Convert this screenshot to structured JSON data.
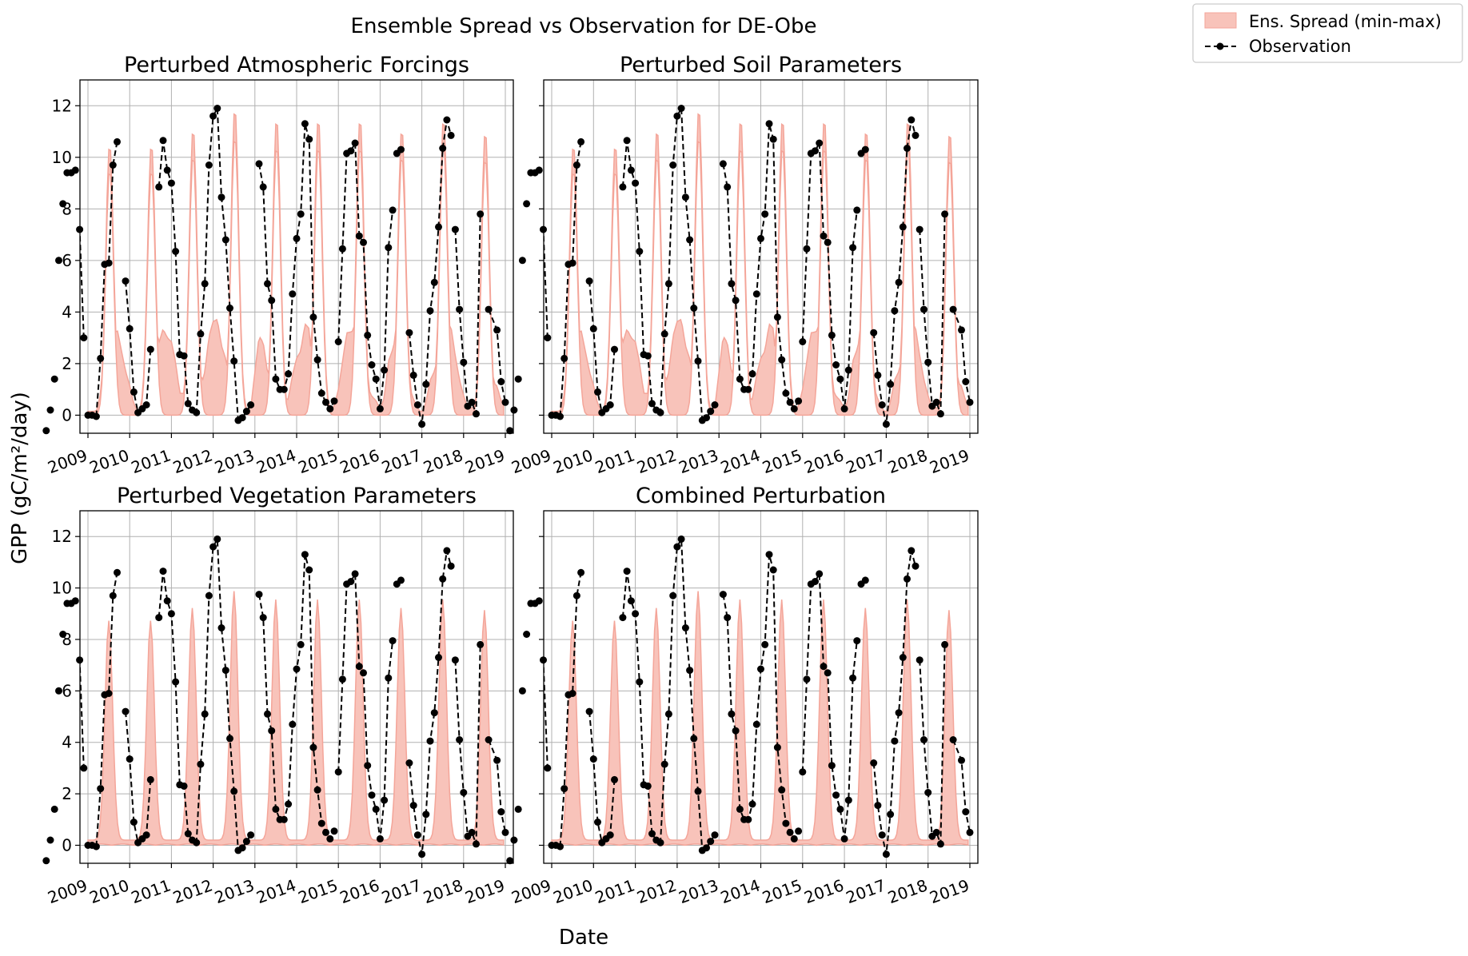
{
  "figure": {
    "title": "Ensemble Spread vs Observation for DE-Obe",
    "xlabel": "Date",
    "ylabel": "GPP (gC/m²/day)",
    "legend": {
      "placement": "upper-right, outside plots",
      "items": [
        {
          "label": "Ens. Spread (min-max)",
          "kind": "fill",
          "color": "#f4a599"
        },
        {
          "label": "Observation",
          "kind": "line-marker",
          "color": "#000000",
          "style": "dashed"
        }
      ]
    },
    "colors": {
      "spread_fill": "#f8c3ba",
      "spread_edge": "#f4a599",
      "observation": "#000000",
      "grid": "#b0b0b0"
    }
  },
  "chart_data": [
    {
      "type": "area",
      "title": "Perturbed Atmospheric Forcings",
      "xlim": [
        2009,
        2019
      ],
      "ylim": [
        -0.7,
        13.0
      ],
      "yticks": [
        0,
        2,
        4,
        6,
        8,
        10,
        12
      ],
      "xticks": [
        "2009",
        "2010",
        "2011",
        "2012",
        "2013",
        "2014",
        "2015",
        "2016",
        "2017",
        "2018",
        "2019"
      ],
      "grid": true,
      "spread_style": "narrow"
    },
    {
      "type": "area",
      "title": "Perturbed Soil Parameters",
      "xlim": [
        2009,
        2019
      ],
      "ylim": [
        -0.7,
        13.0
      ],
      "yticks": [
        0,
        2,
        4,
        6,
        8,
        10,
        12
      ],
      "xticks": [
        "2009",
        "2010",
        "2011",
        "2012",
        "2013",
        "2014",
        "2015",
        "2016",
        "2017",
        "2018",
        "2019"
      ],
      "grid": true,
      "spread_style": "narrow"
    },
    {
      "type": "area",
      "title": "Perturbed Vegetation Parameters",
      "xlim": [
        2009,
        2019
      ],
      "ylim": [
        -0.7,
        13.0
      ],
      "yticks": [
        0,
        2,
        4,
        6,
        8,
        10,
        12
      ],
      "xticks": [
        "2009",
        "2010",
        "2011",
        "2012",
        "2013",
        "2014",
        "2015",
        "2016",
        "2017",
        "2018",
        "2019"
      ],
      "grid": true,
      "spread_style": "wide"
    },
    {
      "type": "area",
      "title": "Combined Perturbation",
      "xlim": [
        2009,
        2019
      ],
      "ylim": [
        -0.7,
        13.0
      ],
      "yticks": [
        0,
        2,
        4,
        6,
        8,
        10,
        12
      ],
      "xticks": [
        "2009",
        "2010",
        "2011",
        "2012",
        "2013",
        "2014",
        "2015",
        "2016",
        "2017",
        "2018",
        "2019"
      ],
      "grid": true,
      "spread_style": "wide"
    }
  ],
  "observation": {
    "segments": [
      [
        [
          2009.0,
          -0.6
        ],
        [
          2009.1,
          0.2
        ],
        [
          2009.2,
          1.4
        ],
        [
          2009.3,
          6.0
        ],
        [
          2009.4,
          8.2
        ],
        [
          2009.5,
          9.4
        ],
        [
          2009.6,
          9.4
        ],
        [
          2009.7,
          9.5
        ],
        [
          2009.8,
          7.2
        ],
        [
          2009.9,
          3.0
        ]
      ],
      [
        [
          2010.0,
          0.0
        ],
        [
          2010.1,
          0.0
        ],
        [
          2010.2,
          -0.05
        ],
        [
          2010.3,
          2.2
        ],
        [
          2010.4,
          5.85
        ],
        [
          2010.5,
          5.9
        ],
        [
          2010.6,
          9.7
        ],
        [
          2010.7,
          10.6
        ]
      ],
      [
        [
          2010.9,
          5.2
        ],
        [
          2011.0,
          3.35
        ],
        [
          2011.1,
          0.9
        ],
        [
          2011.2,
          0.1
        ],
        [
          2011.3,
          0.25
        ],
        [
          2011.4,
          0.4
        ],
        [
          2011.5,
          2.55
        ]
      ],
      [
        [
          2011.7,
          8.85
        ],
        [
          2011.8,
          10.65
        ],
        [
          2011.9,
          9.5
        ],
        [
          2012.0,
          9.0
        ],
        [
          2012.1,
          6.35
        ],
        [
          2012.2,
          2.35
        ],
        [
          2012.3,
          2.3
        ],
        [
          2012.4,
          0.45
        ],
        [
          2012.5,
          0.2
        ],
        [
          2012.6,
          0.1
        ],
        [
          2012.7,
          3.15
        ],
        [
          2012.8,
          5.1
        ],
        [
          2012.9,
          9.7
        ],
        [
          2013.0,
          11.6
        ],
        [
          2013.1,
          11.9
        ],
        [
          2013.2,
          8.45
        ],
        [
          2013.3,
          6.8
        ],
        [
          2013.4,
          4.15
        ],
        [
          2013.5,
          2.1
        ],
        [
          2013.6,
          -0.2
        ],
        [
          2013.7,
          -0.1
        ],
        [
          2013.8,
          0.15
        ],
        [
          2013.9,
          0.4
        ]
      ],
      [
        [
          2014.1,
          9.75
        ],
        [
          2014.2,
          8.85
        ],
        [
          2014.3,
          5.1
        ],
        [
          2014.4,
          4.45
        ],
        [
          2014.5,
          1.4
        ],
        [
          2014.6,
          1.0
        ],
        [
          2014.7,
          1.0
        ],
        [
          2014.8,
          1.6
        ],
        [
          2014.9,
          4.7
        ],
        [
          2015.0,
          6.85
        ],
        [
          2015.1,
          7.8
        ],
        [
          2015.2,
          11.3
        ],
        [
          2015.3,
          10.7
        ],
        [
          2015.4,
          3.8
        ],
        [
          2015.5,
          2.15
        ],
        [
          2015.6,
          0.85
        ],
        [
          2015.7,
          0.5
        ],
        [
          2015.8,
          0.25
        ],
        [
          2015.9,
          0.55
        ]
      ],
      [
        [
          2016.0,
          2.85
        ],
        [
          2016.1,
          6.45
        ],
        [
          2016.2,
          10.15
        ],
        [
          2016.3,
          10.25
        ],
        [
          2016.4,
          10.55
        ],
        [
          2016.5,
          6.95
        ],
        [
          2016.6,
          6.7
        ],
        [
          2016.7,
          3.1
        ],
        [
          2016.8,
          1.95
        ],
        [
          2016.9,
          1.4
        ],
        [
          2017.0,
          0.25
        ],
        [
          2017.1,
          1.75
        ],
        [
          2017.2,
          6.5
        ],
        [
          2017.3,
          7.95
        ]
      ],
      [
        [
          2017.4,
          10.15
        ],
        [
          2017.5,
          10.3
        ]
      ],
      [
        [
          2017.7,
          3.2
        ],
        [
          2017.8,
          1.55
        ],
        [
          2017.9,
          0.4
        ],
        [
          2018.0,
          -0.35
        ],
        [
          2018.1,
          1.2
        ],
        [
          2018.2,
          4.05
        ],
        [
          2018.3,
          5.15
        ],
        [
          2018.4,
          7.3
        ],
        [
          2018.5,
          10.35
        ],
        [
          2018.6,
          11.45
        ],
        [
          2018.7,
          10.85
        ]
      ],
      [
        [
          2018.8,
          7.2
        ],
        [
          2018.9,
          4.1
        ],
        [
          2019.0,
          2.05
        ],
        [
          2019.1,
          0.35
        ],
        [
          2019.2,
          0.5
        ],
        [
          2019.3,
          0.05
        ],
        [
          2019.4,
          7.8
        ]
      ],
      [
        [
          2019.6,
          4.1
        ],
        [
          2019.8,
          3.3
        ],
        [
          2019.9,
          1.3
        ],
        [
          2020.0,
          0.5
        ]
      ]
    ]
  }
}
